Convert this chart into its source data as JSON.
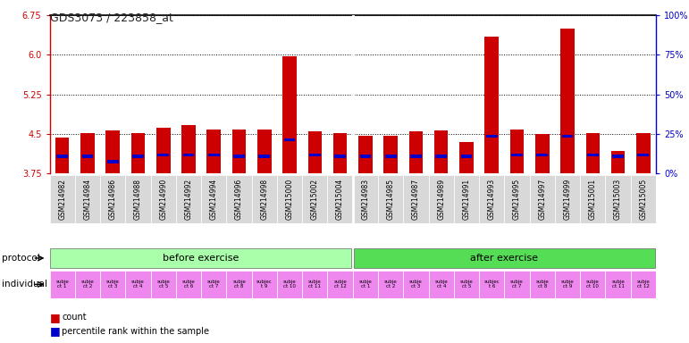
{
  "title": "GDS3073 / 223858_at",
  "samples": [
    "GSM214982",
    "GSM214984",
    "GSM214986",
    "GSM214988",
    "GSM214990",
    "GSM214992",
    "GSM214994",
    "GSM214996",
    "GSM214998",
    "GSM215000",
    "GSM215002",
    "GSM215004",
    "GSM214983",
    "GSM214985",
    "GSM214987",
    "GSM214989",
    "GSM214991",
    "GSM214993",
    "GSM214995",
    "GSM214997",
    "GSM214999",
    "GSM215001",
    "GSM215003",
    "GSM215005"
  ],
  "bar_heights": [
    4.42,
    4.52,
    4.57,
    4.52,
    4.62,
    4.66,
    4.58,
    4.58,
    4.58,
    5.97,
    4.55,
    4.52,
    4.47,
    4.46,
    4.55,
    4.57,
    4.35,
    6.35,
    4.58,
    4.5,
    6.5,
    4.52,
    4.18,
    4.52
  ],
  "percentile_values": [
    4.07,
    4.07,
    3.97,
    4.07,
    4.1,
    4.1,
    4.1,
    4.07,
    4.07,
    4.38,
    4.1,
    4.07,
    4.07,
    4.07,
    4.07,
    4.07,
    4.07,
    4.45,
    4.1,
    4.1,
    4.45,
    4.1,
    4.07,
    4.1
  ],
  "ymin": 3.75,
  "ymax": 6.75,
  "yticks_left": [
    3.75,
    4.5,
    5.25,
    6.0,
    6.75
  ],
  "yticks_right_vals": [
    0,
    25,
    50,
    75,
    100
  ],
  "yticks_right_labels": [
    "0%",
    "25%",
    "50%",
    "75%",
    "100%"
  ],
  "n_before": 12,
  "n_after": 12,
  "before_label": "before exercise",
  "after_label": "after exercise",
  "protocol_label": "protocol",
  "individual_label": "individual",
  "individuals_before": [
    "subje\nct 1",
    "subje\nct 2",
    "subje\nct 3",
    "subje\nct 4",
    "subje\nct 5",
    "subje\nct 6",
    "subje\nct 7",
    "subje\nct 8",
    "subjec\nt 9",
    "subje\nct 10",
    "subje\nct 11",
    "subje\nct 12"
  ],
  "individuals_after": [
    "subje\nct 1",
    "subje\nct 2",
    "subje\nct 3",
    "subje\nct 4",
    "subje\nct 5",
    "subjec\nt 6",
    "subje\nct 7",
    "subje\nct 8",
    "subje\nct 9",
    "subje\nct 10",
    "subje\nct 11",
    "subje\nct 12"
  ],
  "bar_color": "#cc0000",
  "percentile_color": "#0000cc",
  "before_bg": "#aaffaa",
  "after_bg": "#55dd55",
  "individual_bg": "#ee88ee",
  "plot_bg": "#ffffff",
  "xticklabel_bg": "#d8d8d8",
  "left_axis_color": "#cc0000",
  "right_axis_color": "#0000cc",
  "legend_count_label": "count",
  "legend_pct_label": "percentile rank within the sample"
}
